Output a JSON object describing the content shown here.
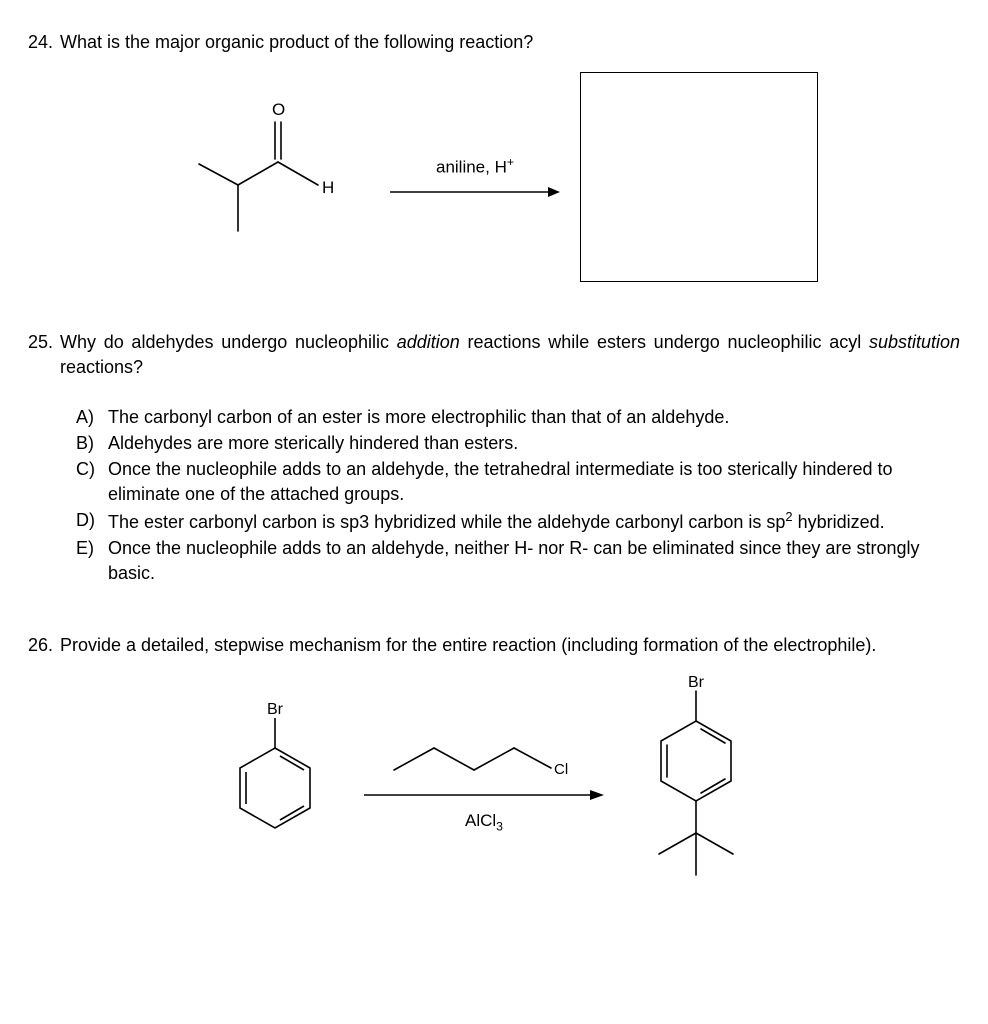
{
  "q24": {
    "number": "24.",
    "text": "What is the major organic product of the following reaction?",
    "arrow_label_html": "aniline, H<span class=\"sup\">+</span>",
    "structure_H_label": "H",
    "structure_O_label": "O"
  },
  "q25": {
    "number": "25.",
    "text_html": "Why do aldehydes undergo nucleophilic <span class=\"italic\">addition</span> reactions while esters undergo nucleophilic acyl <span class=\"italic\">substitution</span> reactions?",
    "choices": [
      {
        "letter": "A)",
        "text_html": "The carbonyl carbon of an ester is more electrophilic than that of an aldehyde."
      },
      {
        "letter": "B)",
        "text_html": "Aldehydes are more sterically hindered than esters."
      },
      {
        "letter": "C)",
        "text_html": "Once the nucleophile adds to an aldehyde, the tetrahedral intermediate is too sterically hindered to eliminate one of the attached groups."
      },
      {
        "letter": "D)",
        "text_html": "The ester carbonyl carbon is sp3 hybridized while the aldehyde carbonyl carbon is sp<span class=\"sup\">2</span> hybridized."
      },
      {
        "letter": "E)",
        "text_html": "Once the nucleophile adds to an aldehyde, neither H- nor R- can be eliminated since they are strongly basic."
      }
    ]
  },
  "q26": {
    "number": "26.",
    "text": "Provide a detailed, stepwise mechanism for the entire reaction (including formation of the electrophile).",
    "reactant_label": "Br",
    "product_label": "Br",
    "reagent_Cl": "Cl",
    "catalyst_html": "AlCl<span class=\"sub\">3</span>"
  },
  "colors": {
    "line": "#000000",
    "bg": "#ffffff"
  }
}
